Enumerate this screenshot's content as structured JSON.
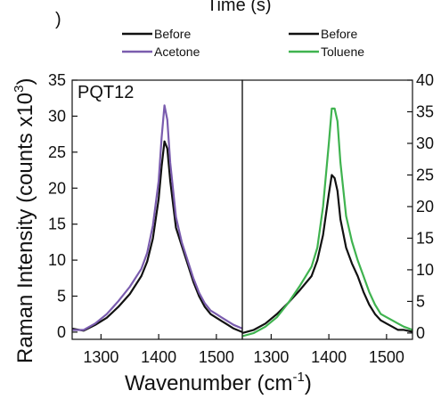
{
  "top_text": "Time (s)",
  "corner_mark": ")",
  "chart_data": {
    "type": "line",
    "xlabel": "Wavenumber (cm",
    "xlabel_sup": "-1",
    "xlabel_end": ")",
    "ylabel": "Raman Intensity (counts x10",
    "ylabel_sup": "3",
    "ylabel_end": ")",
    "xlim": [
      1250,
      1545
    ],
    "xticks": [
      1300,
      1400,
      1500
    ],
    "grid": false,
    "panels": [
      {
        "label": "PQT12",
        "ylim": [
          -1,
          35
        ],
        "yticks": [
          0,
          5,
          10,
          15,
          20,
          25,
          30,
          35
        ],
        "ytick_side": "left",
        "legend": [
          "Before",
          "Acetone"
        ],
        "series": [
          {
            "name": "Before",
            "color": "#111111",
            "x": [
              1250,
              1270,
              1290,
              1310,
              1330,
              1350,
              1370,
              1380,
              1390,
              1400,
              1405,
              1410,
              1415,
              1420,
              1430,
              1440,
              1450,
              1460,
              1470,
              1480,
              1490,
              1500,
              1510,
              1520,
              1530,
              1545
            ],
            "y": [
              0.5,
              0.2,
              1.0,
              2.0,
              3.5,
              5.3,
              7.8,
              9.8,
              13.0,
              18.5,
              23.0,
              26.5,
              25.5,
              21.0,
              14.5,
              12.0,
              9.5,
              7.0,
              5.0,
              3.5,
              2.5,
              2.0,
              1.5,
              1.0,
              0.5,
              0.0
            ]
          },
          {
            "name": "Acetone",
            "color": "#7a5cae",
            "x": [
              1250,
              1270,
              1290,
              1310,
              1330,
              1350,
              1370,
              1380,
              1390,
              1400,
              1405,
              1410,
              1415,
              1420,
              1430,
              1440,
              1450,
              1460,
              1470,
              1480,
              1490,
              1500,
              1510,
              1520,
              1530,
              1545
            ],
            "y": [
              0.3,
              0.3,
              1.2,
              2.5,
              4.3,
              6.3,
              8.8,
              11.0,
              14.8,
              21.0,
              27.0,
              31.5,
              29.5,
              23.5,
              16.0,
              12.5,
              10.0,
              7.5,
              5.5,
              4.0,
              3.0,
              2.5,
              2.0,
              1.5,
              1.0,
              0.5
            ]
          }
        ]
      },
      {
        "label": "",
        "ylim": [
          -1,
          40
        ],
        "yticks": [
          0,
          5,
          10,
          15,
          20,
          25,
          30,
          35,
          40
        ],
        "ytick_side": "right",
        "legend": [
          "Before",
          "Toluene"
        ],
        "series": [
          {
            "name": "Before",
            "color": "#111111",
            "x": [
              1250,
              1270,
              1290,
              1310,
              1330,
              1350,
              1370,
              1380,
              1390,
              1400,
              1405,
              1410,
              1415,
              1420,
              1430,
              1440,
              1450,
              1460,
              1470,
              1480,
              1490,
              1500,
              1510,
              1520,
              1530,
              1545
            ],
            "y": [
              0.0,
              0.5,
              1.5,
              3.0,
              4.8,
              6.8,
              9.0,
              11.5,
              15.5,
              22.0,
              25.0,
              24.5,
              22.5,
              18.0,
              13.5,
              11.0,
              9.0,
              6.5,
              4.5,
              3.0,
              2.0,
              1.5,
              1.0,
              0.5,
              0.5,
              0.2
            ]
          },
          {
            "name": "Toluene",
            "color": "#3fb34f",
            "x": [
              1250,
              1270,
              1290,
              1310,
              1330,
              1350,
              1370,
              1380,
              1390,
              1400,
              1405,
              1410,
              1415,
              1420,
              1430,
              1440,
              1450,
              1460,
              1470,
              1480,
              1490,
              1500,
              1510,
              1520,
              1530,
              1545
            ],
            "y": [
              -0.5,
              0.0,
              1.0,
              2.5,
              4.8,
              7.5,
              10.5,
              13.5,
              20.0,
              30.0,
              35.5,
              35.5,
              33.5,
              27.0,
              18.5,
              14.5,
              11.5,
              9.0,
              6.5,
              4.5,
              3.0,
              2.5,
              2.0,
              1.5,
              1.0,
              0.5
            ]
          }
        ]
      }
    ]
  }
}
